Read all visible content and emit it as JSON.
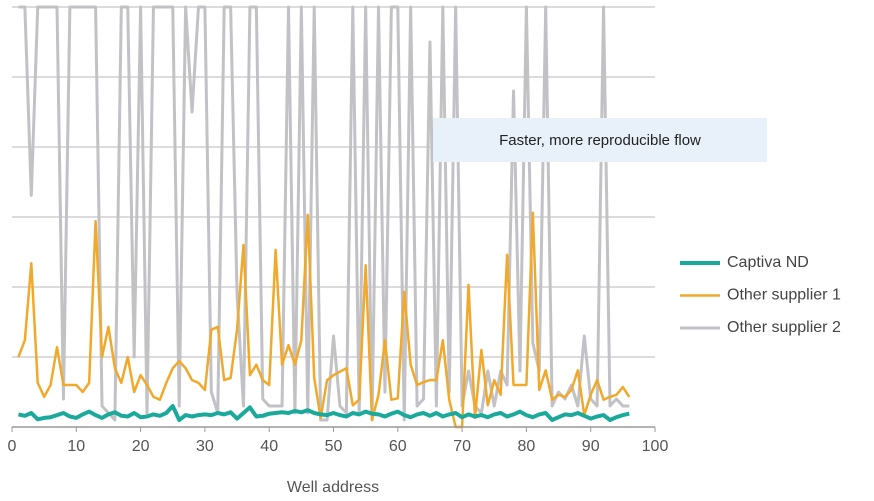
{
  "chart_data": {
    "type": "line",
    "x_label": "Well address",
    "annotation": "Faster, more reproducible flow",
    "x": [
      1,
      2,
      3,
      4,
      5,
      6,
      7,
      8,
      9,
      10,
      11,
      12,
      13,
      14,
      15,
      16,
      17,
      18,
      19,
      20,
      21,
      22,
      23,
      24,
      25,
      26,
      27,
      28,
      29,
      30,
      31,
      32,
      33,
      34,
      35,
      36,
      37,
      38,
      39,
      40,
      41,
      42,
      43,
      44,
      45,
      46,
      47,
      48,
      49,
      50,
      51,
      52,
      53,
      54,
      55,
      56,
      57,
      58,
      59,
      60,
      61,
      62,
      63,
      64,
      65,
      66,
      67,
      68,
      69,
      70,
      71,
      72,
      73,
      74,
      75,
      76,
      77,
      78,
      79,
      80,
      81,
      82,
      83,
      84,
      85,
      86,
      87,
      88,
      89,
      90,
      91,
      92,
      93,
      94,
      95,
      96
    ],
    "series": [
      {
        "name": "Captiva ND",
        "color": "#1aa99b",
        "width": 4,
        "values": [
          0.18,
          0.16,
          0.2,
          0.11,
          0.13,
          0.14,
          0.17,
          0.2,
          0.15,
          0.13,
          0.18,
          0.22,
          0.17,
          0.13,
          0.18,
          0.21,
          0.16,
          0.15,
          0.2,
          0.14,
          0.15,
          0.18,
          0.16,
          0.2,
          0.3,
          0.1,
          0.17,
          0.15,
          0.17,
          0.18,
          0.17,
          0.2,
          0.18,
          0.21,
          0.12,
          0.2,
          0.28,
          0.15,
          0.16,
          0.19,
          0.2,
          0.21,
          0.2,
          0.23,
          0.21,
          0.24,
          0.2,
          0.18,
          0.17,
          0.2,
          0.17,
          0.15,
          0.2,
          0.18,
          0.22,
          0.19,
          0.18,
          0.15,
          0.19,
          0.22,
          0.17,
          0.14,
          0.18,
          0.2,
          0.16,
          0.2,
          0.15,
          0.18,
          0.2,
          0.14,
          0.18,
          0.15,
          0.17,
          0.14,
          0.18,
          0.2,
          0.15,
          0.18,
          0.22,
          0.17,
          0.14,
          0.18,
          0.2,
          0.1,
          0.14,
          0.18,
          0.17,
          0.2,
          0.16,
          0.12,
          0.15,
          0.17,
          0.1,
          0.14,
          0.17,
          0.19
        ]
      },
      {
        "name": "Other supplier 1",
        "color": "#f0a92b",
        "width": 2.5,
        "values": [
          1.0,
          1.24,
          2.34,
          0.63,
          0.43,
          0.6,
          1.14,
          0.6,
          0.6,
          0.6,
          0.5,
          0.63,
          2.94,
          1.0,
          1.43,
          0.84,
          0.63,
          1.0,
          0.5,
          0.74,
          0.6,
          0.43,
          0.39,
          0.63,
          0.84,
          0.94,
          0.84,
          0.67,
          0.63,
          0.53,
          1.39,
          1.43,
          0.67,
          0.7,
          1.39,
          2.6,
          0.74,
          0.89,
          0.67,
          0.6,
          2.53,
          0.89,
          1.17,
          0.89,
          1.24,
          3.03,
          0.7,
          0.13,
          0.67,
          0.74,
          0.79,
          0.84,
          0.31,
          0.39,
          2.31,
          0.1,
          0.46,
          1.24,
          0.39,
          0.41,
          1.93,
          0.89,
          0.6,
          0.64,
          0.67,
          0.67,
          1.24,
          0.39,
          0,
          0,
          2.03,
          0.13,
          1.1,
          0.31,
          0.67,
          0.46,
          2.46,
          0.6,
          0.6,
          0.6,
          3.06,
          0.53,
          0.81,
          0.39,
          0.46,
          0.43,
          0.53,
          0.81,
          0.17,
          0.46,
          0.67,
          0.39,
          0.43,
          0.46,
          0.57,
          0.43
        ]
      },
      {
        "name": "Other supplier 2",
        "color": "#c2c2c6",
        "width": 3,
        "values": [
          6,
          6,
          3.31,
          6,
          6,
          6,
          6,
          0.4,
          6,
          6,
          6,
          6,
          6,
          0.3,
          0.2,
          0.1,
          6,
          6,
          1.0,
          6,
          0.2,
          6,
          6,
          6,
          6,
          0.3,
          6,
          4.5,
          6,
          6,
          0.5,
          0.2,
          6,
          6,
          1.9,
          0.3,
          6,
          6,
          0.4,
          0.3,
          0.3,
          0.3,
          6,
          0.2,
          6,
          0.2,
          6,
          0.1,
          0.1,
          1.3,
          0.3,
          0.2,
          6,
          0.2,
          6,
          0.1,
          6,
          0.5,
          6,
          6,
          0.1,
          6,
          0.3,
          0.4,
          5.5,
          0.3,
          6,
          0.5,
          6,
          0.3,
          0.8,
          0.3,
          0.2,
          0.8,
          0.3,
          0.8,
          0.6,
          4.8,
          0.8,
          6,
          1.2,
          0.8,
          6,
          0.3,
          0.5,
          0.4,
          0.6,
          0.3,
          1.3,
          0.4,
          0.3,
          6,
          0.3,
          0.4,
          0.3,
          0.3
        ]
      }
    ],
    "xlim": [
      0,
      100
    ],
    "xticks": [
      0,
      10,
      20,
      30,
      40,
      50,
      60,
      70,
      80,
      90,
      100
    ],
    "ylim": [
      0,
      6
    ],
    "yticks": [
      0,
      1,
      2,
      3,
      4,
      5,
      6
    ],
    "y_tick_labels": false,
    "grid": true,
    "legend": "right"
  }
}
